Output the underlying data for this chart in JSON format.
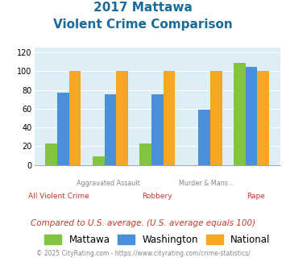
{
  "title_line1": "2017 Mattawa",
  "title_line2": "Violent Crime Comparison",
  "categories": [
    "All Violent Crime",
    "Aggravated Assault",
    "Robbery",
    "Murder & Mans...",
    "Rape"
  ],
  "mattawa": [
    23,
    9,
    23,
    0,
    109
  ],
  "washington": [
    77,
    75,
    75,
    59,
    105
  ],
  "national": [
    100,
    100,
    100,
    100,
    100
  ],
  "colors": {
    "mattawa": "#82c341",
    "washington": "#4a90d9",
    "national": "#f5a623"
  },
  "ylim": [
    0,
    125
  ],
  "yticks": [
    0,
    20,
    40,
    60,
    80,
    100,
    120
  ],
  "bg_color": "#ddeef6",
  "footnote": "Compared to U.S. average. (U.S. average equals 100)",
  "copyright": "© 2025 CityRating.com - https://www.cityrating.com/crime-statistics/",
  "title_color": "#1a6a9a",
  "footnote_color": "#c0392b",
  "copyright_color": "#888888",
  "top_labels_color": "#888888",
  "bottom_labels_color": "#c0392b"
}
